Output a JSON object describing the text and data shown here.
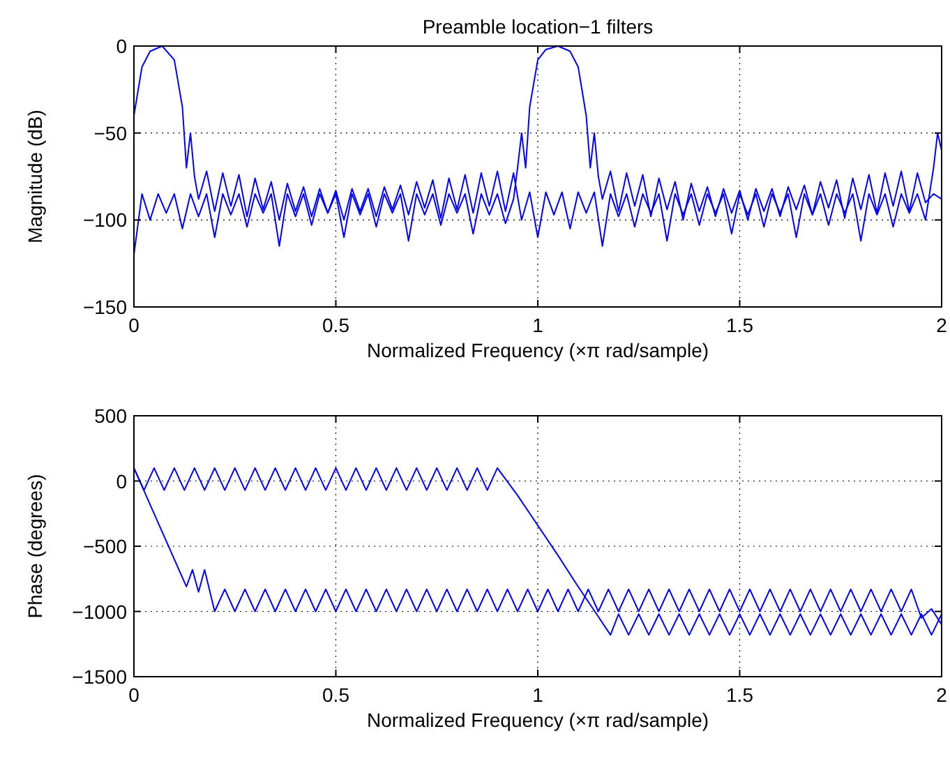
{
  "chart_data": [
    {
      "type": "line",
      "title": "Preamble location−1 filters",
      "xlabel": "Normalized Frequency  (×π rad/sample)",
      "ylabel": "Magnitude (dB)",
      "xlim": [
        0,
        2
      ],
      "ylim": [
        -150,
        0
      ],
      "xticks": [
        0,
        0.5,
        1,
        1.5,
        2
      ],
      "yticks": [
        {
          "value": -150,
          "label": "−150"
        },
        {
          "value": -100,
          "label": "−100"
        },
        {
          "value": -50,
          "label": "−50"
        },
        {
          "value": 0,
          "label": "0"
        }
      ],
      "grid": true,
      "line_style": "solid",
      "series": [
        {
          "color": "#0000ff",
          "x": [
            0,
            0.02,
            0.04,
            0.07,
            0.1,
            0.12,
            0.13,
            0.14,
            0.15,
            0.16,
            0.18,
            0.2,
            0.22,
            0.24,
            0.26,
            0.28,
            0.3,
            0.32,
            0.34,
            0.36,
            0.38,
            0.4,
            0.42,
            0.44,
            0.46,
            0.48,
            0.5,
            0.52,
            0.54,
            0.56,
            0.58,
            0.6,
            0.62,
            0.64,
            0.66,
            0.68,
            0.7,
            0.72,
            0.74,
            0.76,
            0.78,
            0.8,
            0.82,
            0.84,
            0.86,
            0.88,
            0.9,
            0.92,
            0.94,
            0.96,
            0.98,
            1,
            1.02,
            1.04,
            1.06,
            1.08,
            1.1,
            1.12,
            1.14,
            1.16,
            1.18,
            1.2,
            1.22,
            1.24,
            1.26,
            1.28,
            1.3,
            1.32,
            1.34,
            1.36,
            1.38,
            1.4,
            1.42,
            1.44,
            1.46,
            1.48,
            1.5,
            1.52,
            1.54,
            1.56,
            1.58,
            1.6,
            1.62,
            1.64,
            1.66,
            1.68,
            1.7,
            1.72,
            1.74,
            1.76,
            1.78,
            1.8,
            1.82,
            1.84,
            1.86,
            1.88,
            1.9,
            1.92,
            1.94,
            1.96,
            1.98,
            1.99,
            2
          ],
          "values": [
            -40,
            -12,
            -3,
            0,
            -8,
            -35,
            -70,
            -50,
            -75,
            -88,
            -72,
            -95,
            -73,
            -92,
            -74,
            -98,
            -76,
            -94,
            -78,
            -100,
            -79,
            -95,
            -81,
            -98,
            -82,
            -96,
            -83,
            -100,
            -82,
            -95,
            -82,
            -98,
            -81,
            -94,
            -80,
            -97,
            -78,
            -93,
            -77,
            -99,
            -76,
            -94,
            -74,
            -96,
            -73,
            -92,
            -72,
            -95,
            -73,
            -100,
            -84,
            -110,
            -84,
            -97,
            -84,
            -105,
            -84,
            -96,
            -84,
            -115,
            -85,
            -98,
            -85,
            -104,
            -85,
            -96,
            -85,
            -112,
            -85,
            -97,
            -85,
            -103,
            -85,
            -96,
            -85,
            -108,
            -85,
            -97,
            -85,
            -104,
            -85,
            -96,
            -85,
            -110,
            -85,
            -97,
            -85,
            -103,
            -85,
            -96,
            -85,
            -112,
            -85,
            -97,
            -85,
            -104,
            -85,
            -96,
            -85,
            -100,
            -70,
            -50,
            -60
          ]
        },
        {
          "color": "#0000ff",
          "x": [
            0,
            0.02,
            0.04,
            0.06,
            0.08,
            0.1,
            0.12,
            0.14,
            0.16,
            0.18,
            0.2,
            0.22,
            0.24,
            0.26,
            0.28,
            0.3,
            0.32,
            0.34,
            0.36,
            0.38,
            0.4,
            0.42,
            0.44,
            0.46,
            0.48,
            0.5,
            0.52,
            0.54,
            0.56,
            0.58,
            0.6,
            0.62,
            0.64,
            0.66,
            0.68,
            0.7,
            0.72,
            0.74,
            0.76,
            0.78,
            0.8,
            0.82,
            0.84,
            0.86,
            0.88,
            0.9,
            0.92,
            0.94,
            0.95,
            0.96,
            0.97,
            0.98,
            1,
            1.02,
            1.05,
            1.08,
            1.1,
            1.12,
            1.13,
            1.14,
            1.15,
            1.16,
            1.18,
            1.2,
            1.22,
            1.24,
            1.26,
            1.28,
            1.3,
            1.32,
            1.34,
            1.36,
            1.38,
            1.4,
            1.42,
            1.44,
            1.46,
            1.48,
            1.5,
            1.52,
            1.54,
            1.56,
            1.58,
            1.6,
            1.62,
            1.64,
            1.66,
            1.68,
            1.7,
            1.72,
            1.74,
            1.76,
            1.78,
            1.8,
            1.82,
            1.84,
            1.86,
            1.88,
            1.9,
            1.92,
            1.94,
            1.96,
            1.98,
            2
          ],
          "values": [
            -120,
            -85,
            -100,
            -85,
            -96,
            -85,
            -105,
            -85,
            -98,
            -85,
            -110,
            -85,
            -97,
            -85,
            -104,
            -85,
            -96,
            -85,
            -115,
            -85,
            -98,
            -85,
            -103,
            -85,
            -96,
            -85,
            -110,
            -85,
            -97,
            -85,
            -104,
            -85,
            -96,
            -85,
            -112,
            -85,
            -97,
            -85,
            -103,
            -85,
            -96,
            -85,
            -108,
            -85,
            -97,
            -85,
            -102,
            -88,
            -70,
            -50,
            -70,
            -35,
            -8,
            -2,
            0,
            -3,
            -12,
            -40,
            -70,
            -50,
            -75,
            -88,
            -72,
            -95,
            -73,
            -92,
            -74,
            -98,
            -76,
            -94,
            -78,
            -100,
            -79,
            -95,
            -81,
            -98,
            -82,
            -96,
            -83,
            -100,
            -82,
            -95,
            -82,
            -98,
            -81,
            -94,
            -80,
            -97,
            -78,
            -93,
            -77,
            -99,
            -76,
            -94,
            -74,
            -96,
            -73,
            -92,
            -72,
            -95,
            -73,
            -90,
            -85,
            -88
          ]
        }
      ]
    },
    {
      "type": "line",
      "xlabel": "Normalized Frequency  (×π rad/sample)",
      "ylabel": "Phase (degrees)",
      "xlim": [
        0,
        2
      ],
      "ylim": [
        -1500,
        500
      ],
      "xticks": [
        0,
        0.5,
        1,
        1.5,
        2
      ],
      "yticks": [
        {
          "value": -1500,
          "label": "−1500"
        },
        {
          "value": -1000,
          "label": "−1000"
        },
        {
          "value": -500,
          "label": "−500"
        },
        {
          "value": 0,
          "label": "0"
        },
        {
          "value": 500,
          "label": "500"
        }
      ],
      "grid": true,
      "line_style": "solid",
      "series": [
        {
          "color": "#0000ff",
          "x": [
            0,
            0.025,
            0.05,
            0.075,
            0.1,
            0.125,
            0.15,
            0.175,
            0.2,
            0.225,
            0.25,
            0.275,
            0.3,
            0.325,
            0.35,
            0.375,
            0.4,
            0.425,
            0.45,
            0.475,
            0.5,
            0.525,
            0.55,
            0.575,
            0.6,
            0.625,
            0.65,
            0.675,
            0.7,
            0.725,
            0.75,
            0.775,
            0.8,
            0.825,
            0.85,
            0.875,
            0.9,
            0.95,
            1,
            1.05,
            1.1,
            1.15,
            1.18,
            1.2,
            1.225,
            1.25,
            1.275,
            1.3,
            1.325,
            1.35,
            1.375,
            1.4,
            1.425,
            1.45,
            1.475,
            1.5,
            1.525,
            1.55,
            1.575,
            1.6,
            1.625,
            1.65,
            1.675,
            1.7,
            1.725,
            1.75,
            1.775,
            1.8,
            1.825,
            1.85,
            1.875,
            1.9,
            1.925,
            1.95,
            1.975,
            2
          ],
          "values": [
            100,
            -70,
            100,
            -70,
            100,
            -70,
            100,
            -70,
            100,
            -70,
            100,
            -70,
            100,
            -70,
            100,
            -70,
            100,
            -70,
            100,
            -70,
            100,
            -70,
            100,
            -70,
            100,
            -70,
            100,
            -70,
            100,
            -70,
            100,
            -70,
            100,
            -70,
            100,
            -70,
            100,
            -110,
            -340,
            -570,
            -810,
            -1040,
            -1180,
            -1020,
            -1180,
            -1020,
            -1180,
            -1020,
            -1180,
            -1020,
            -1180,
            -1020,
            -1180,
            -1020,
            -1180,
            -1020,
            -1180,
            -1020,
            -1180,
            -1020,
            -1180,
            -1020,
            -1180,
            -1020,
            -1180,
            -1020,
            -1180,
            -1020,
            -1180,
            -1020,
            -1180,
            -1020,
            -1180,
            -1020,
            -1180,
            -1020
          ]
        },
        {
          "color": "#0000ff",
          "x": [
            0,
            0.13,
            0.145,
            0.16,
            0.175,
            0.2,
            0.225,
            0.25,
            0.275,
            0.3,
            0.325,
            0.35,
            0.375,
            0.4,
            0.425,
            0.45,
            0.475,
            0.5,
            0.525,
            0.55,
            0.575,
            0.6,
            0.625,
            0.65,
            0.675,
            0.7,
            0.725,
            0.75,
            0.775,
            0.8,
            0.825,
            0.85,
            0.875,
            0.9,
            0.925,
            0.95,
            0.975,
            1,
            1.025,
            1.05,
            1.075,
            1.1,
            1.125,
            1.15,
            1.175,
            1.2,
            1.225,
            1.25,
            1.275,
            1.3,
            1.325,
            1.35,
            1.375,
            1.4,
            1.425,
            1.45,
            1.475,
            1.5,
            1.525,
            1.55,
            1.575,
            1.6,
            1.625,
            1.65,
            1.675,
            1.7,
            1.725,
            1.75,
            1.775,
            1.8,
            1.825,
            1.85,
            1.875,
            1.9,
            1.925,
            1.95,
            1.975,
            2
          ],
          "values": [
            100,
            -810,
            -680,
            -850,
            -680,
            -1000,
            -830,
            -1000,
            -830,
            -1000,
            -830,
            -1000,
            -830,
            -1000,
            -830,
            -1000,
            -830,
            -1000,
            -830,
            -1000,
            -830,
            -1000,
            -830,
            -1000,
            -830,
            -1000,
            -830,
            -1000,
            -830,
            -1000,
            -830,
            -1000,
            -830,
            -1000,
            -830,
            -1000,
            -830,
            -1000,
            -830,
            -1000,
            -830,
            -1000,
            -830,
            -1000,
            -830,
            -1000,
            -830,
            -1000,
            -830,
            -1000,
            -830,
            -1000,
            -830,
            -1000,
            -830,
            -1000,
            -830,
            -1000,
            -830,
            -1000,
            -830,
            -1000,
            -830,
            -1000,
            -830,
            -1000,
            -830,
            -1000,
            -830,
            -1000,
            -830,
            -1000,
            -830,
            -1000,
            -830,
            -1050,
            -980,
            -1100
          ]
        }
      ]
    }
  ]
}
